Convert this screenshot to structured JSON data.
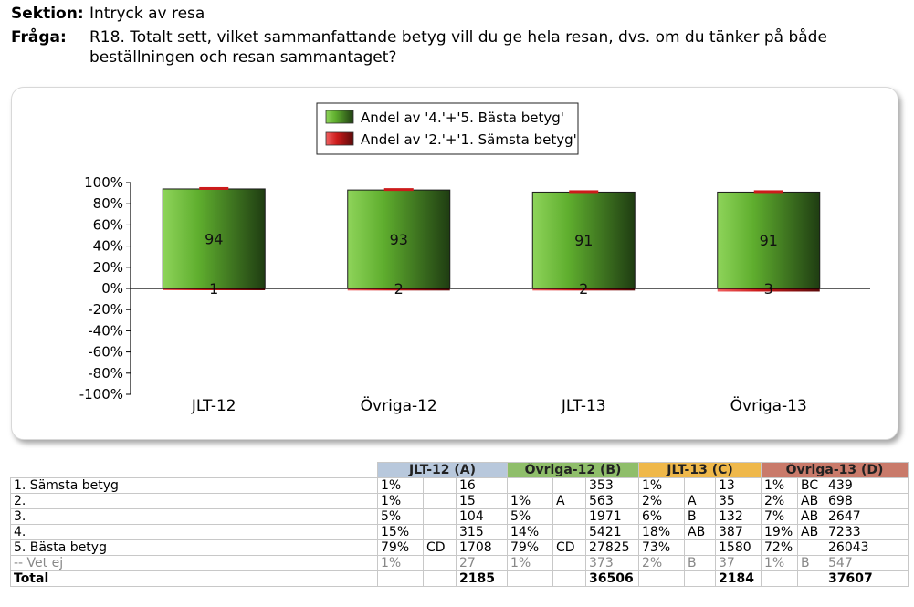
{
  "header": {
    "section_label": "Sektion:",
    "section_value": "Intryck av resa",
    "question_label": "Fråga:",
    "question_line1": "R18. Totalt sett, vilket sammanfattande betyg vill du ge hela resan, dvs. om du tänker på både",
    "question_line2": "beställningen och resan sammantaget?"
  },
  "colors": {
    "best": "#5fae2e",
    "worst": "#cc1b1b",
    "group_a": "#b8c8dc",
    "group_b": "#8fbe6a",
    "group_c": "#efb84a",
    "group_d": "#c97a6a"
  },
  "chart_data": {
    "type": "bar",
    "categories": [
      "JLT-12",
      "Övriga-12",
      "JLT-13",
      "Övriga-13"
    ],
    "series": [
      {
        "name": "Andel av '4.'+'5. Bästa betyg'",
        "values": [
          94,
          93,
          91,
          91
        ],
        "labels": [
          "94",
          "93",
          "91",
          "91"
        ]
      },
      {
        "name": "Andel av '2.'+'1. Sämsta betyg'",
        "values": [
          -1,
          -2,
          -2,
          -3
        ],
        "labels": [
          "1",
          "2",
          "2",
          "3"
        ]
      }
    ],
    "ylim": [
      -100,
      100
    ],
    "yticks": [
      "-100%",
      "-80%",
      "-60%",
      "-40%",
      "-20%",
      "0%",
      "20%",
      "40%",
      "60%",
      "80%",
      "100%"
    ],
    "legend": "top-center",
    "grid": false
  },
  "table": {
    "groups": [
      "JLT-12 (A)",
      "Övriga-12 (B)",
      "JLT-13 (C)",
      "Övriga-13 (D)"
    ],
    "rows": [
      {
        "label": "1. Sämsta betyg",
        "cells": [
          [
            "1%",
            "",
            "16"
          ],
          [
            "",
            "",
            "353"
          ],
          [
            "1%",
            "",
            "13"
          ],
          [
            "1%",
            "BC",
            "439"
          ]
        ]
      },
      {
        "label": "2.",
        "cells": [
          [
            "1%",
            "",
            "15"
          ],
          [
            "1%",
            "A",
            "563"
          ],
          [
            "2%",
            "A",
            "35"
          ],
          [
            "2%",
            "AB",
            "698"
          ]
        ]
      },
      {
        "label": "3.",
        "cells": [
          [
            "5%",
            "",
            "104"
          ],
          [
            "5%",
            "",
            "1971"
          ],
          [
            "6%",
            "B",
            "132"
          ],
          [
            "7%",
            "AB",
            "2647"
          ]
        ]
      },
      {
        "label": "4.",
        "cells": [
          [
            "15%",
            "",
            "315"
          ],
          [
            "14%",
            "",
            "5421"
          ],
          [
            "18%",
            "AB",
            "387"
          ],
          [
            "19%",
            "AB",
            "7233"
          ]
        ]
      },
      {
        "label": "5. Bästa betyg",
        "cells": [
          [
            "79%",
            "CD",
            "1708"
          ],
          [
            "79%",
            "CD",
            "27825"
          ],
          [
            "73%",
            "",
            "1580"
          ],
          [
            "72%",
            "",
            "26043"
          ]
        ]
      },
      {
        "label": "-- Vet ej",
        "muted": true,
        "cells": [
          [
            "1%",
            "",
            "27"
          ],
          [
            "1%",
            "",
            "373"
          ],
          [
            "2%",
            "B",
            "37"
          ],
          [
            "1%",
            "B",
            "547"
          ]
        ]
      },
      {
        "label": "Total",
        "total": true,
        "cells": [
          [
            "",
            "",
            "2185"
          ],
          [
            "",
            "",
            "36506"
          ],
          [
            "",
            "",
            "2184"
          ],
          [
            "",
            "",
            "37607"
          ]
        ]
      }
    ]
  }
}
